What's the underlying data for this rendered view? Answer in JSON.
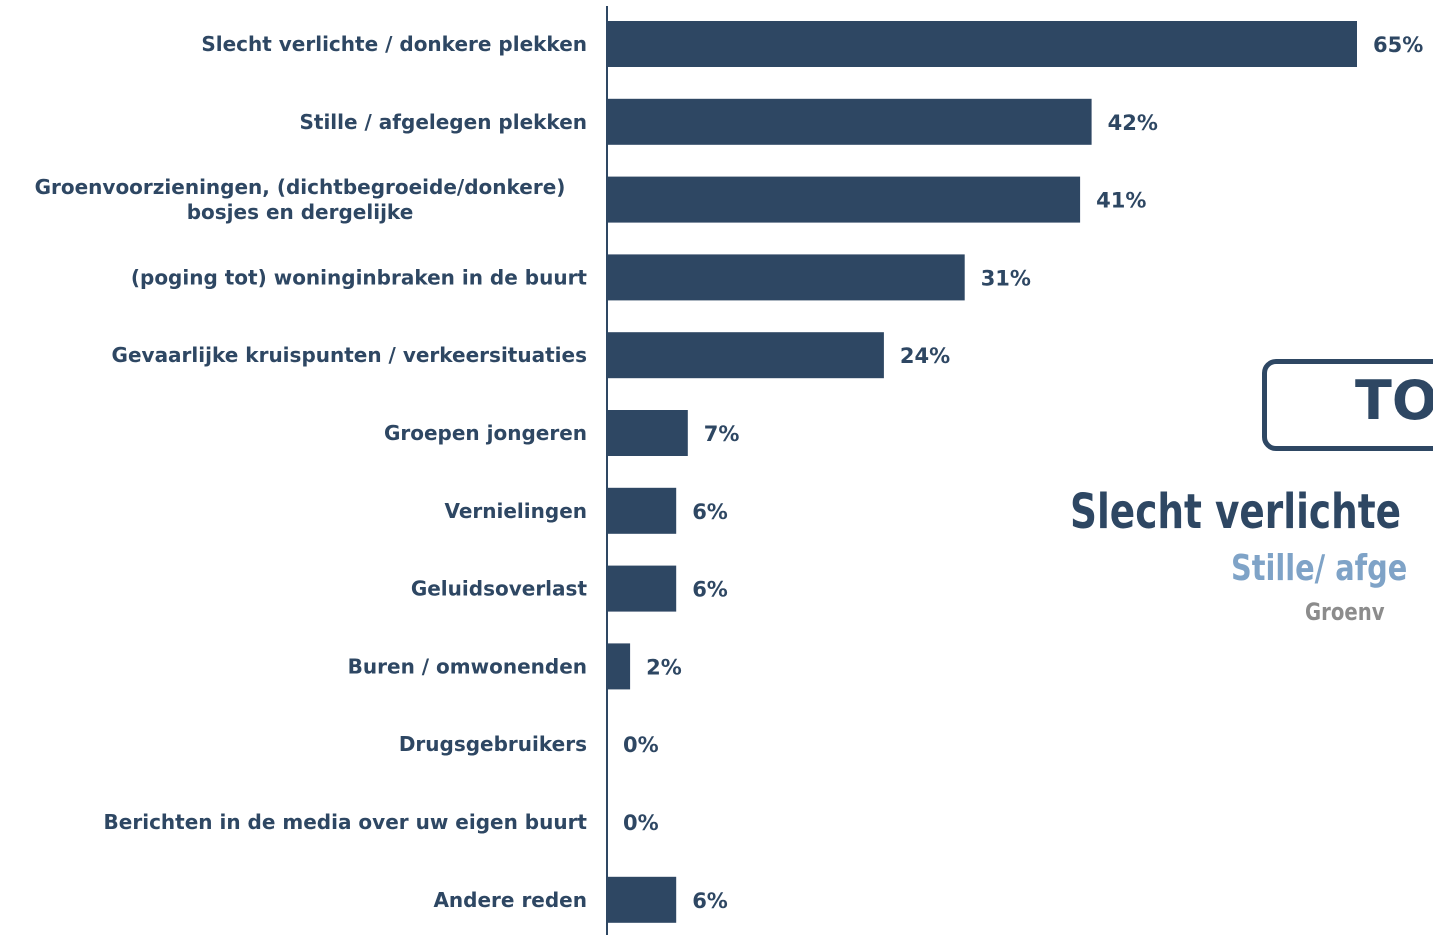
{
  "colors": {
    "bar": "#2e4763",
    "text": "#2e4763",
    "accent_light": "#7fa3c7",
    "muted": "#8c8c8c"
  },
  "chart_data": {
    "type": "bar",
    "orientation": "horizontal",
    "categories": [
      [
        "Slecht verlichte / donkere plekken"
      ],
      [
        "Stille / afgelegen plekken"
      ],
      [
        "Groenvoorzieningen, (dichtbegroeide/donkere)",
        "bosjes en dergelijke"
      ],
      [
        "(poging tot) woninginbraken in de buurt"
      ],
      [
        "Gevaarlijke kruispunten / verkeersituaties"
      ],
      [
        "Groepen jongeren"
      ],
      [
        "Vernielingen"
      ],
      [
        "Geluidsoverlast"
      ],
      [
        "Buren / omwonenden"
      ],
      [
        "Drugsgebruikers"
      ],
      [
        "Berichten in de media over uw eigen buurt"
      ],
      [
        "Andere reden"
      ]
    ],
    "values": [
      65,
      42,
      41,
      31,
      24,
      7,
      6,
      6,
      2,
      0,
      0,
      6
    ],
    "value_labels": [
      "65%",
      "42%",
      "41%",
      "31%",
      "24%",
      "7%",
      "6%",
      "6%",
      "2%",
      "0%",
      "0%",
      "6%"
    ],
    "xlim": [
      0,
      65
    ],
    "grid": false,
    "legend": "none"
  },
  "overlay": {
    "top_label": "TO",
    "line1": "Slecht verlichte",
    "line2": "Stille/ afge",
    "line3": "Groenv"
  }
}
